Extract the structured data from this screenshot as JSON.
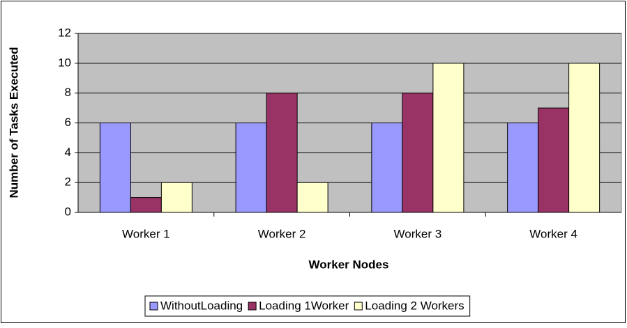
{
  "chart_data": {
    "type": "bar",
    "xlabel": "Worker Nodes",
    "ylabel": "Number of Tasks Executed",
    "categories": [
      "Worker 1",
      "Worker 2",
      "Worker 3",
      "Worker 4"
    ],
    "series": [
      {
        "name": "WithoutLoading",
        "color": "#9999ff",
        "values": [
          6,
          6,
          6,
          6
        ]
      },
      {
        "name": "Loading 1Worker",
        "color": "#993366",
        "values": [
          1,
          8,
          8,
          7
        ]
      },
      {
        "name": "Loading 2 Workers",
        "color": "#ffffcc",
        "values": [
          2,
          2,
          10,
          10
        ]
      }
    ],
    "ylim": [
      0,
      12
    ],
    "yticks": [
      0,
      2,
      4,
      6,
      8,
      10,
      12
    ],
    "grid": true,
    "legend": "bottom"
  }
}
